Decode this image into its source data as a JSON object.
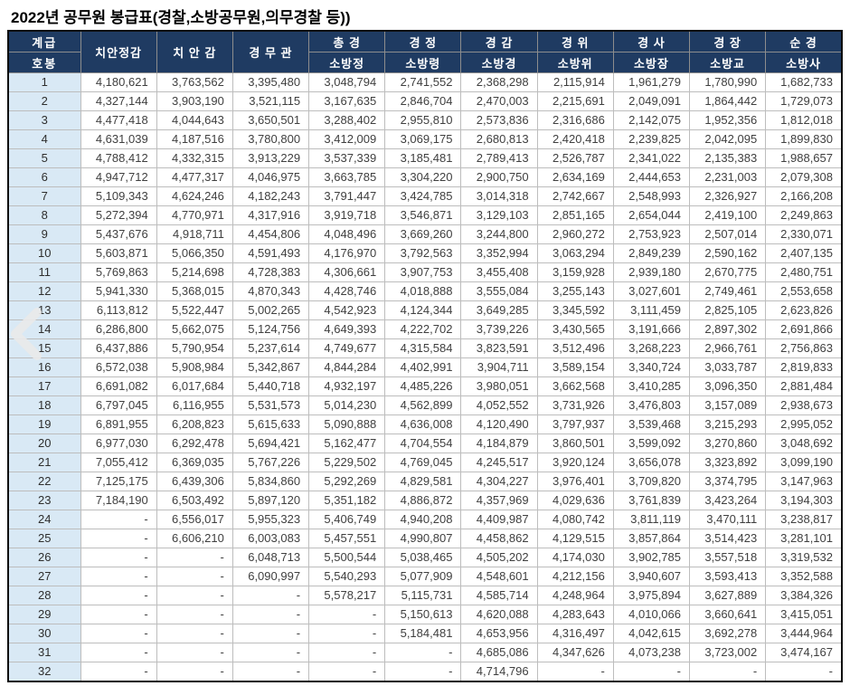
{
  "title": "2022년 공무원 봉급표(경찰,소방공무원,의무경찰 등))",
  "colors": {
    "header_bg": "#1F3B62",
    "header_text": "#FFFFFF",
    "step_col_bg": "#D9E9F5",
    "grid_border": "#BDBDBD",
    "outer_border": "#0D0D0D",
    "cell_text": "#3F3F3F"
  },
  "icons": {
    "chevron_left": "‹"
  },
  "table": {
    "header": {
      "corner_top": "계급",
      "corner_bottom": "호봉",
      "columns": [
        {
          "top": "치안정감",
          "bottom": ""
        },
        {
          "top": "치 안 감",
          "bottom": ""
        },
        {
          "top": "경 무 관",
          "bottom": ""
        },
        {
          "top": "총 경",
          "bottom": "소방정"
        },
        {
          "top": "경 정",
          "bottom": "소방령"
        },
        {
          "top": "경 감",
          "bottom": "소방경"
        },
        {
          "top": "경 위",
          "bottom": "소방위"
        },
        {
          "top": "경 사",
          "bottom": "소방장"
        },
        {
          "top": "경 장",
          "bottom": "소방교"
        },
        {
          "top": "순 경",
          "bottom": "소방사"
        }
      ]
    },
    "rows": [
      {
        "step": "1",
        "values": [
          "4,180,621",
          "3,763,562",
          "3,395,480",
          "3,048,794",
          "2,741,552",
          "2,368,298",
          "2,115,914",
          "1,961,279",
          "1,780,990",
          "1,682,733"
        ]
      },
      {
        "step": "2",
        "values": [
          "4,327,144",
          "3,903,190",
          "3,521,115",
          "3,167,635",
          "2,846,704",
          "2,470,003",
          "2,215,691",
          "2,049,091",
          "1,864,442",
          "1,729,073"
        ]
      },
      {
        "step": "3",
        "values": [
          "4,477,418",
          "4,044,643",
          "3,650,501",
          "3,288,402",
          "2,955,810",
          "2,573,836",
          "2,316,686",
          "2,142,075",
          "1,952,356",
          "1,812,018"
        ]
      },
      {
        "step": "4",
        "values": [
          "4,631,039",
          "4,187,516",
          "3,780,800",
          "3,412,009",
          "3,069,175",
          "2,680,813",
          "2,420,418",
          "2,239,825",
          "2,042,095",
          "1,899,830"
        ]
      },
      {
        "step": "5",
        "values": [
          "4,788,412",
          "4,332,315",
          "3,913,229",
          "3,537,339",
          "3,185,481",
          "2,789,413",
          "2,526,787",
          "2,341,022",
          "2,135,383",
          "1,988,657"
        ]
      },
      {
        "step": "6",
        "values": [
          "4,947,712",
          "4,477,317",
          "4,046,975",
          "3,663,785",
          "3,304,220",
          "2,900,750",
          "2,634,169",
          "2,444,653",
          "2,231,003",
          "2,079,308"
        ]
      },
      {
        "step": "7",
        "values": [
          "5,109,343",
          "4,624,246",
          "4,182,243",
          "3,791,447",
          "3,424,785",
          "3,014,318",
          "2,742,667",
          "2,548,993",
          "2,326,927",
          "2,166,208"
        ]
      },
      {
        "step": "8",
        "values": [
          "5,272,394",
          "4,770,971",
          "4,317,916",
          "3,919,718",
          "3,546,871",
          "3,129,103",
          "2,851,165",
          "2,654,044",
          "2,419,100",
          "2,249,863"
        ]
      },
      {
        "step": "9",
        "values": [
          "5,437,676",
          "4,918,711",
          "4,454,806",
          "4,048,496",
          "3,669,260",
          "3,244,800",
          "2,960,272",
          "2,753,923",
          "2,507,014",
          "2,330,071"
        ]
      },
      {
        "step": "10",
        "values": [
          "5,603,871",
          "5,066,350",
          "4,591,493",
          "4,176,970",
          "3,792,563",
          "3,352,994",
          "3,063,294",
          "2,849,239",
          "2,590,162",
          "2,407,135"
        ]
      },
      {
        "step": "11",
        "values": [
          "5,769,863",
          "5,214,698",
          "4,728,383",
          "4,306,661",
          "3,907,753",
          "3,455,408",
          "3,159,928",
          "2,939,180",
          "2,670,775",
          "2,480,751"
        ]
      },
      {
        "step": "12",
        "values": [
          "5,941,330",
          "5,368,015",
          "4,870,343",
          "4,428,746",
          "4,018,888",
          "3,555,084",
          "3,255,143",
          "3,027,601",
          "2,749,461",
          "2,553,658"
        ]
      },
      {
        "step": "13",
        "values": [
          "6,113,812",
          "5,522,447",
          "5,002,265",
          "4,542,923",
          "4,124,344",
          "3,649,285",
          "3,345,592",
          "3,111,459",
          "2,825,105",
          "2,623,826"
        ]
      },
      {
        "step": "14",
        "values": [
          "6,286,800",
          "5,662,075",
          "5,124,756",
          "4,649,393",
          "4,222,702",
          "3,739,226",
          "3,430,565",
          "3,191,666",
          "2,897,302",
          "2,691,866"
        ]
      },
      {
        "step": "15",
        "values": [
          "6,437,886",
          "5,790,954",
          "5,237,614",
          "4,749,677",
          "4,315,584",
          "3,823,591",
          "3,512,496",
          "3,268,223",
          "2,966,761",
          "2,756,863"
        ]
      },
      {
        "step": "16",
        "values": [
          "6,572,038",
          "5,908,984",
          "5,342,867",
          "4,844,284",
          "4,402,991",
          "3,904,711",
          "3,589,154",
          "3,340,724",
          "3,033,787",
          "2,819,833"
        ]
      },
      {
        "step": "17",
        "values": [
          "6,691,082",
          "6,017,684",
          "5,440,718",
          "4,932,197",
          "4,485,226",
          "3,980,051",
          "3,662,568",
          "3,410,285",
          "3,096,350",
          "2,881,484"
        ]
      },
      {
        "step": "18",
        "values": [
          "6,797,045",
          "6,116,955",
          "5,531,573",
          "5,014,230",
          "4,562,899",
          "4,052,552",
          "3,731,926",
          "3,476,803",
          "3,157,089",
          "2,938,673"
        ]
      },
      {
        "step": "19",
        "values": [
          "6,891,955",
          "6,208,823",
          "5,615,633",
          "5,090,888",
          "4,636,008",
          "4,120,490",
          "3,797,937",
          "3,539,468",
          "3,215,293",
          "2,995,052"
        ]
      },
      {
        "step": "20",
        "values": [
          "6,977,030",
          "6,292,478",
          "5,694,421",
          "5,162,477",
          "4,704,554",
          "4,184,879",
          "3,860,501",
          "3,599,092",
          "3,270,860",
          "3,048,692"
        ]
      },
      {
        "step": "21",
        "values": [
          "7,055,412",
          "6,369,035",
          "5,767,226",
          "5,229,502",
          "4,769,045",
          "4,245,517",
          "3,920,124",
          "3,656,078",
          "3,323,892",
          "3,099,190"
        ]
      },
      {
        "step": "22",
        "values": [
          "7,125,175",
          "6,439,306",
          "5,834,860",
          "5,292,269",
          "4,829,581",
          "4,304,227",
          "3,976,401",
          "3,709,820",
          "3,374,795",
          "3,147,963"
        ]
      },
      {
        "step": "23",
        "values": [
          "7,184,190",
          "6,503,492",
          "5,897,120",
          "5,351,182",
          "4,886,872",
          "4,357,969",
          "4,029,636",
          "3,761,839",
          "3,423,264",
          "3,194,303"
        ]
      },
      {
        "step": "24",
        "values": [
          "-",
          "6,556,017",
          "5,955,323",
          "5,406,749",
          "4,940,208",
          "4,409,987",
          "4,080,742",
          "3,811,119",
          "3,470,111",
          "3,238,817"
        ]
      },
      {
        "step": "25",
        "values": [
          "-",
          "6,606,210",
          "6,003,083",
          "5,457,551",
          "4,990,807",
          "4,458,862",
          "4,129,515",
          "3,857,864",
          "3,514,423",
          "3,281,101"
        ]
      },
      {
        "step": "26",
        "values": [
          "-",
          "-",
          "6,048,713",
          "5,500,544",
          "5,038,465",
          "4,505,202",
          "4,174,030",
          "3,902,785",
          "3,557,518",
          "3,319,532"
        ]
      },
      {
        "step": "27",
        "values": [
          "-",
          "-",
          "6,090,997",
          "5,540,293",
          "5,077,909",
          "4,548,601",
          "4,212,156",
          "3,940,607",
          "3,593,413",
          "3,352,588"
        ]
      },
      {
        "step": "28",
        "values": [
          "-",
          "-",
          "-",
          "5,578,217",
          "5,115,731",
          "4,585,714",
          "4,248,964",
          "3,975,894",
          "3,627,889",
          "3,384,326"
        ]
      },
      {
        "step": "29",
        "values": [
          "-",
          "-",
          "-",
          "-",
          "5,150,613",
          "4,620,088",
          "4,283,643",
          "4,010,066",
          "3,660,641",
          "3,415,051"
        ]
      },
      {
        "step": "30",
        "values": [
          "-",
          "-",
          "-",
          "-",
          "5,184,481",
          "4,653,956",
          "4,316,497",
          "4,042,615",
          "3,692,278",
          "3,444,964"
        ]
      },
      {
        "step": "31",
        "values": [
          "-",
          "-",
          "-",
          "-",
          "-",
          "4,685,086",
          "4,347,626",
          "4,073,238",
          "3,723,002",
          "3,474,167"
        ]
      },
      {
        "step": "32",
        "values": [
          "-",
          "-",
          "-",
          "-",
          "-",
          "4,714,796",
          "-",
          "-",
          "-",
          "-"
        ]
      }
    ]
  }
}
